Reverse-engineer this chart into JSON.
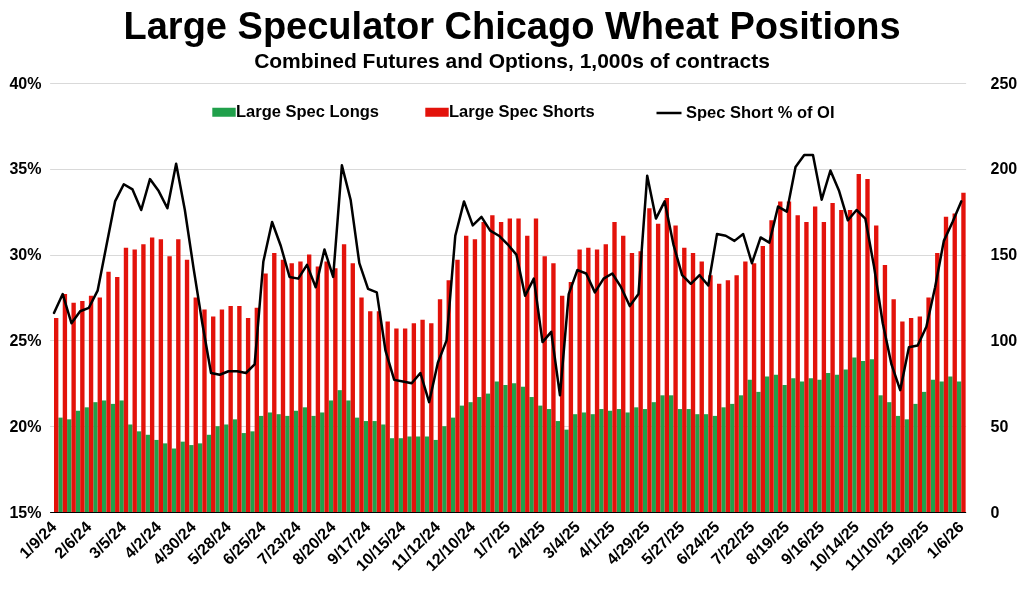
{
  "chart_data": {
    "type": "bar",
    "title": "Large Speculator Chicago Wheat Positions",
    "subtitle": "Combined Futures and Options, 1,000s of contracts",
    "categories": [
      "1/9/24",
      null,
      null,
      null,
      "2/6/24",
      null,
      null,
      null,
      "3/5/24",
      null,
      null,
      null,
      "4/2/24",
      null,
      null,
      null,
      "4/30/24",
      null,
      null,
      null,
      "5/28/24",
      null,
      null,
      null,
      "6/25/24",
      null,
      null,
      null,
      "7/23/24",
      null,
      null,
      null,
      "8/20/24",
      null,
      null,
      null,
      "9/17/24",
      null,
      null,
      null,
      "10/15/24",
      null,
      null,
      null,
      "11/12/24",
      null,
      null,
      null,
      "12/10/24",
      null,
      null,
      null,
      "1/7/25",
      null,
      null,
      null,
      "2/4/25",
      null,
      null,
      null,
      "3/4/25",
      null,
      null,
      null,
      "4/1/25",
      null,
      null,
      null,
      "4/29/25",
      null,
      null,
      null,
      "5/27/25",
      null,
      null,
      null,
      "6/24/25",
      null,
      null,
      null,
      "7/22/25",
      null,
      null,
      null,
      "8/19/25",
      null,
      null,
      null,
      "9/16/25",
      null,
      null,
      null,
      "10/14/25",
      null,
      null,
      null,
      "11/10/25",
      null,
      null,
      null,
      "12/9/25",
      null,
      null,
      null,
      "1/6/26"
    ],
    "series": [
      {
        "name": "Large Spec Longs",
        "color": "#20a04b",
        "axis": "y2",
        "values": [
          null,
          55,
          54,
          59,
          61,
          64,
          65,
          63,
          65,
          51,
          47,
          45,
          42,
          40,
          37,
          41,
          39,
          40,
          45,
          50,
          51,
          54,
          46,
          47,
          56,
          58,
          57,
          56,
          59,
          61,
          56,
          58,
          65,
          71,
          65,
          55,
          53,
          53,
          51,
          43,
          43,
          44,
          44,
          44,
          42,
          50,
          55,
          62,
          64,
          67,
          69,
          76,
          74,
          75,
          73,
          67,
          62,
          60,
          53,
          48,
          57,
          58,
          57,
          60,
          59,
          60,
          58,
          61,
          60,
          64,
          68,
          68,
          60,
          60,
          57,
          57,
          56,
          61,
          63,
          68,
          77,
          70,
          79,
          80,
          74,
          78,
          76,
          78,
          77,
          81,
          80,
          83,
          90,
          88,
          89,
          68,
          64,
          56,
          54,
          63,
          70,
          77,
          76,
          79,
          76
        ]
      },
      {
        "name": "Large Spec Shorts",
        "color": "#e3120b",
        "axis": "y2",
        "values": [
          113,
          127,
          122,
          123,
          126,
          125,
          140,
          137,
          154,
          153,
          156,
          160,
          159,
          149,
          159,
          147,
          125,
          118,
          114,
          118,
          120,
          120,
          113,
          119,
          139,
          151,
          147,
          145,
          146,
          150,
          143,
          146,
          142,
          156,
          145,
          125,
          117,
          117,
          111,
          107,
          107,
          110,
          112,
          110,
          124,
          135,
          147,
          161,
          159,
          169,
          173,
          169,
          171,
          171,
          161,
          171,
          149,
          145,
          126,
          134,
          153,
          154,
          153,
          156,
          169,
          161,
          151,
          152,
          177,
          168,
          183,
          167,
          154,
          151,
          146,
          138,
          133,
          135,
          138,
          146,
          145,
          155,
          170,
          181,
          181,
          173,
          169,
          178,
          169,
          180,
          176,
          176,
          197,
          194,
          167,
          144,
          124,
          111,
          113,
          114,
          125,
          151,
          172,
          174,
          186
        ]
      },
      {
        "name": "Spec Short % of OI",
        "type": "line",
        "color": "#000000",
        "values": [
          26.6,
          27.7,
          26.0,
          26.7,
          26.9,
          27.9,
          30.5,
          33.1,
          34.1,
          33.8,
          32.6,
          34.4,
          33.7,
          32.7,
          35.3,
          32.6,
          29.2,
          26.0,
          23.1,
          23.0,
          23.2,
          23.2,
          23.1,
          23.6,
          29.6,
          31.9,
          30.5,
          28.7,
          28.6,
          29.4,
          28.1,
          30.3,
          28.7,
          35.2,
          33.2,
          29.5,
          28.0,
          27.8,
          24.4,
          22.7,
          22.6,
          22.5,
          23.1,
          21.4,
          23.7,
          25.0,
          31.1,
          33.1,
          31.7,
          32.2,
          31.4,
          31.1,
          30.6,
          30.0,
          27.6,
          28.6,
          24.9,
          25.5,
          21.8,
          27.7,
          29.1,
          28.9,
          27.8,
          28.6,
          28.9,
          28.1,
          27.0,
          27.7,
          34.6,
          32.1,
          33.1,
          30.6,
          28.8,
          28.3,
          28.8,
          28.2,
          31.2,
          31.1,
          30.8,
          31.2,
          29.5,
          31.0,
          30.7,
          32.8,
          32.5,
          35.1,
          35.8,
          35.8,
          33.2,
          34.9,
          33.7,
          32.0,
          32.6,
          32.1,
          29.3,
          26.0,
          23.6,
          22.1,
          24.6,
          24.7,
          25.8,
          28.1,
          30.8,
          31.9,
          33.1
        ]
      }
    ],
    "ylim": [
      15,
      40
    ],
    "yticks": [
      {
        "value": 15,
        "label": "15%"
      },
      {
        "value": 20,
        "label": "20%"
      },
      {
        "value": 25,
        "label": "25%"
      },
      {
        "value": 30,
        "label": "30%"
      },
      {
        "value": 35,
        "label": "35%"
      },
      {
        "value": 40,
        "label": "40%"
      }
    ],
    "y2lim": [
      0,
      250
    ],
    "y2ticks": [
      0,
      50,
      100,
      150,
      200,
      250
    ],
    "grid": "y",
    "legend": "top"
  }
}
